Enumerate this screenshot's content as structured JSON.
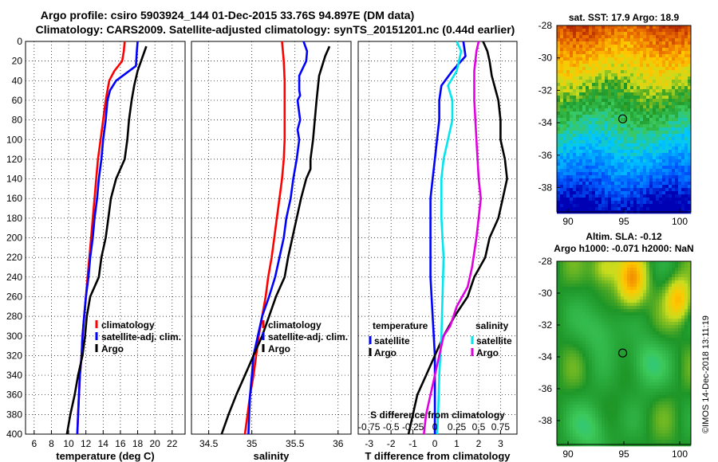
{
  "header": {
    "line1": "Argo profile: csiro 5903924_144 01-Dec-2015 33.76S 94.897E (DM data)",
    "line2": "Climatology: CARS2009. Satellite-adjusted climatology: synTS_20151201.nc (0.44d earlier)"
  },
  "colors": {
    "climatology": "#ff0000",
    "satellite": "#0000ff",
    "argo": "#000000",
    "satellite_s": "#00e5ee",
    "argo_s": "#e000e0"
  },
  "chart_data": [
    {
      "type": "line",
      "name": "temperature",
      "xlabel": "temperature (deg C)",
      "ylabel": "",
      "xlim": [
        5,
        23.5
      ],
      "ylim": [
        0,
        400
      ],
      "xticks": [
        6,
        8,
        10,
        12,
        14,
        16,
        18,
        20,
        22
      ],
      "yticks": [
        0,
        20,
        40,
        60,
        80,
        100,
        120,
        140,
        160,
        180,
        200,
        220,
        240,
        260,
        280,
        300,
        320,
        340,
        360,
        380,
        400
      ],
      "legend": [
        "climatology",
        "satellite-adj. clim.",
        "Argo"
      ],
      "series": [
        {
          "name": "climatology",
          "color": "#ff0000",
          "points": [
            [
              16.5,
              0
            ],
            [
              16.4,
              10
            ],
            [
              16.2,
              20
            ],
            [
              15.3,
              30
            ],
            [
              14.7,
              40
            ],
            [
              14.3,
              60
            ],
            [
              14.0,
              80
            ],
            [
              13.7,
              100
            ],
            [
              13.4,
              120
            ],
            [
              13.2,
              140
            ],
            [
              13.0,
              160
            ],
            [
              12.8,
              180
            ],
            [
              12.6,
              200
            ],
            [
              12.4,
              220
            ],
            [
              12.2,
              240
            ],
            [
              12.0,
              260
            ],
            [
              11.8,
              280
            ],
            [
              11.6,
              300
            ],
            [
              11.5,
              320
            ],
            [
              11.3,
              340
            ],
            [
              11.2,
              360
            ],
            [
              11.1,
              380
            ],
            [
              11.0,
              400
            ]
          ]
        },
        {
          "name": "satellite-adj. clim.",
          "color": "#0000ff",
          "points": [
            [
              18.0,
              0
            ],
            [
              17.9,
              10
            ],
            [
              17.8,
              25
            ],
            [
              15.5,
              40
            ],
            [
              14.8,
              50
            ],
            [
              14.5,
              60
            ],
            [
              14.3,
              80
            ],
            [
              14.0,
              100
            ],
            [
              13.8,
              120
            ],
            [
              13.5,
              140
            ],
            [
              13.3,
              160
            ],
            [
              13.0,
              180
            ],
            [
              12.8,
              200
            ],
            [
              12.5,
              220
            ],
            [
              12.3,
              240
            ],
            [
              12.0,
              260
            ],
            [
              11.8,
              280
            ],
            [
              11.6,
              300
            ],
            [
              11.5,
              320
            ],
            [
              11.3,
              340
            ],
            [
              11.2,
              360
            ],
            [
              11.1,
              380
            ],
            [
              11.0,
              400
            ]
          ]
        },
        {
          "name": "Argo",
          "color": "#000000",
          "points": [
            [
              19.0,
              5
            ],
            [
              18.6,
              15
            ],
            [
              18.0,
              30
            ],
            [
              17.6,
              45
            ],
            [
              17.3,
              60
            ],
            [
              17.0,
              80
            ],
            [
              16.8,
              100
            ],
            [
              16.5,
              120
            ],
            [
              15.5,
              140
            ],
            [
              14.9,
              160
            ],
            [
              14.6,
              180
            ],
            [
              14.3,
              200
            ],
            [
              13.8,
              220
            ],
            [
              13.5,
              240
            ],
            [
              12.5,
              260
            ],
            [
              12.1,
              280
            ],
            [
              11.9,
              300
            ],
            [
              11.6,
              320
            ],
            [
              11.1,
              340
            ],
            [
              10.7,
              360
            ],
            [
              10.2,
              380
            ],
            [
              9.8,
              400
            ]
          ]
        }
      ]
    },
    {
      "type": "line",
      "name": "salinity",
      "xlabel": "salinity",
      "xlim": [
        34.3,
        36.15
      ],
      "ylim": [
        0,
        400
      ],
      "xticks": [
        34.5,
        35,
        35.5,
        36
      ],
      "legend": [
        "climatology",
        "satellite-adj. clim.",
        "Argo"
      ],
      "series": [
        {
          "name": "climatology",
          "color": "#ff0000",
          "points": [
            [
              35.35,
              0
            ],
            [
              35.37,
              20
            ],
            [
              35.38,
              40
            ],
            [
              35.38,
              60
            ],
            [
              35.38,
              80
            ],
            [
              35.38,
              100
            ],
            [
              35.37,
              120
            ],
            [
              35.35,
              140
            ],
            [
              35.32,
              160
            ],
            [
              35.29,
              180
            ],
            [
              35.26,
              200
            ],
            [
              35.23,
              220
            ],
            [
              35.19,
              240
            ],
            [
              35.16,
              260
            ],
            [
              35.12,
              280
            ],
            [
              35.08,
              300
            ],
            [
              35.05,
              320
            ],
            [
              35.02,
              340
            ],
            [
              34.98,
              360
            ],
            [
              34.95,
              380
            ],
            [
              34.92,
              400
            ]
          ]
        },
        {
          "name": "satellite-adj. clim.",
          "color": "#0000ff",
          "points": [
            [
              35.6,
              0
            ],
            [
              35.62,
              5
            ],
            [
              35.64,
              10
            ],
            [
              35.63,
              20
            ],
            [
              35.55,
              35
            ],
            [
              35.55,
              50
            ],
            [
              35.56,
              55
            ],
            [
              35.53,
              60
            ],
            [
              35.56,
              80
            ],
            [
              35.53,
              90
            ],
            [
              35.55,
              100
            ],
            [
              35.52,
              120
            ],
            [
              35.48,
              140
            ],
            [
              35.45,
              160
            ],
            [
              35.4,
              180
            ],
            [
              35.37,
              200
            ],
            [
              35.32,
              220
            ],
            [
              35.27,
              240
            ],
            [
              35.2,
              260
            ],
            [
              35.12,
              280
            ],
            [
              35.07,
              300
            ],
            [
              35.02,
              320
            ],
            [
              35.0,
              340
            ],
            [
              34.98,
              360
            ],
            [
              34.97,
              380
            ],
            [
              34.96,
              400
            ]
          ]
        },
        {
          "name": "Argo",
          "color": "#000000",
          "points": [
            [
              35.9,
              5
            ],
            [
              35.85,
              15
            ],
            [
              35.78,
              35
            ],
            [
              35.75,
              60
            ],
            [
              35.73,
              80
            ],
            [
              35.71,
              100
            ],
            [
              35.68,
              120
            ],
            [
              35.68,
              130
            ],
            [
              35.63,
              140
            ],
            [
              35.57,
              160
            ],
            [
              35.52,
              180
            ],
            [
              35.47,
              200
            ],
            [
              35.42,
              220
            ],
            [
              35.38,
              240
            ],
            [
              35.28,
              260
            ],
            [
              35.2,
              280
            ],
            [
              35.12,
              300
            ],
            [
              35.02,
              320
            ],
            [
              34.92,
              340
            ],
            [
              34.82,
              360
            ],
            [
              34.73,
              380
            ],
            [
              34.65,
              400
            ]
          ]
        }
      ]
    },
    {
      "type": "line",
      "name": "difference",
      "xlabel": "T difference from climatology",
      "xlabel_top": "S difference from climatology",
      "xlim": [
        -3.5,
        3.75
      ],
      "ylim": [
        0,
        400
      ],
      "xticks": [
        -3,
        -2,
        -1,
        0,
        1,
        2,
        3
      ],
      "xticks_top_labels": [
        "-0.75",
        "-0.5",
        "-0.25",
        "0",
        "0.25",
        "0.5",
        "0.75"
      ],
      "legend_left": {
        "title": "temperature",
        "items": [
          "satellite",
          "Argo"
        ]
      },
      "legend_right": {
        "title": "salinity",
        "items": [
          "satellite",
          "Argo"
        ]
      },
      "series": [
        {
          "name": "T satellite",
          "color": "#0000ff",
          "points": [
            [
              1.3,
              0
            ],
            [
              1.4,
              15
            ],
            [
              1.2,
              20
            ],
            [
              0.8,
              30
            ],
            [
              0.3,
              45
            ],
            [
              0.2,
              60
            ],
            [
              0.2,
              80
            ],
            [
              0.1,
              100
            ],
            [
              0,
              120
            ],
            [
              -0.1,
              140
            ],
            [
              -0.2,
              160
            ],
            [
              -0.2,
              200
            ],
            [
              -0.2,
              240
            ],
            [
              -0.1,
              280
            ],
            [
              0,
              320
            ],
            [
              0,
              360
            ],
            [
              0,
              400
            ]
          ]
        },
        {
          "name": "T Argo",
          "color": "#000000",
          "points": [
            [
              2.2,
              0
            ],
            [
              2.4,
              10
            ],
            [
              2.5,
              20
            ],
            [
              2.6,
              35
            ],
            [
              2.9,
              60
            ],
            [
              3.0,
              80
            ],
            [
              3.0,
              100
            ],
            [
              3.2,
              120
            ],
            [
              3.3,
              140
            ],
            [
              3.1,
              160
            ],
            [
              2.9,
              180
            ],
            [
              2.5,
              200
            ],
            [
              2.3,
              220
            ],
            [
              1.8,
              240
            ],
            [
              1.5,
              260
            ],
            [
              0.9,
              280
            ],
            [
              0.4,
              300
            ],
            [
              0,
              320
            ],
            [
              -0.4,
              340
            ],
            [
              -0.8,
              360
            ],
            [
              -1.0,
              380
            ],
            [
              -1.2,
              400
            ]
          ]
        },
        {
          "name": "S satellite",
          "color": "#00e5ee",
          "points": [
            [
              1.0,
              0
            ],
            [
              1.2,
              10
            ],
            [
              1.1,
              20
            ],
            [
              1.0,
              30
            ],
            [
              0.6,
              45
            ],
            [
              0.8,
              60
            ],
            [
              0.8,
              80
            ],
            [
              0.6,
              100
            ],
            [
              0.4,
              120
            ],
            [
              0.3,
              140
            ],
            [
              0.3,
              180
            ],
            [
              0.4,
              220
            ],
            [
              0.35,
              260
            ],
            [
              0.3,
              300
            ],
            [
              0.2,
              340
            ],
            [
              0.15,
              380
            ],
            [
              0.1,
              400
            ]
          ]
        },
        {
          "name": "S Argo",
          "color": "#e000e0",
          "points": [
            [
              2.0,
              0
            ],
            [
              1.9,
              10
            ],
            [
              1.8,
              30
            ],
            [
              1.8,
              60
            ],
            [
              1.9,
              100
            ],
            [
              2.0,
              140
            ],
            [
              2.1,
              160
            ],
            [
              1.9,
              200
            ],
            [
              1.7,
              230
            ],
            [
              1.5,
              250
            ],
            [
              1.0,
              270
            ],
            [
              0.7,
              290
            ],
            [
              0.4,
              300
            ],
            [
              0.2,
              320
            ],
            [
              0,
              340
            ],
            [
              -0.2,
              360
            ],
            [
              -0.4,
              380
            ],
            [
              -0.5,
              400
            ]
          ]
        }
      ]
    },
    {
      "type": "heatmap",
      "name": "sst",
      "title": "sat. SST: 17.9 Argo: 18.9",
      "xlim": [
        89,
        101
      ],
      "ylim": [
        -39.5,
        -28
      ],
      "xticks": [
        90,
        95,
        100
      ],
      "yticks": [
        -28,
        -30,
        -32,
        -34,
        -36,
        -38
      ],
      "marker": {
        "lon": 94.897,
        "lat": -33.76
      }
    },
    {
      "type": "heatmap",
      "name": "sla",
      "title": "Altim. SLA: -0.12",
      "subtitle": "Argo h1000: -0.071 h2000: NaN",
      "xlim": [
        89,
        101
      ],
      "ylim": [
        -39.5,
        -28
      ],
      "xticks": [
        90,
        95,
        100
      ],
      "yticks": [
        -28,
        -30,
        -32,
        -34,
        -36,
        -38
      ],
      "marker": {
        "lon": 94.897,
        "lat": -33.76
      }
    }
  ],
  "watermark": "©IMOS 14-Dec-2018 13:11:19"
}
